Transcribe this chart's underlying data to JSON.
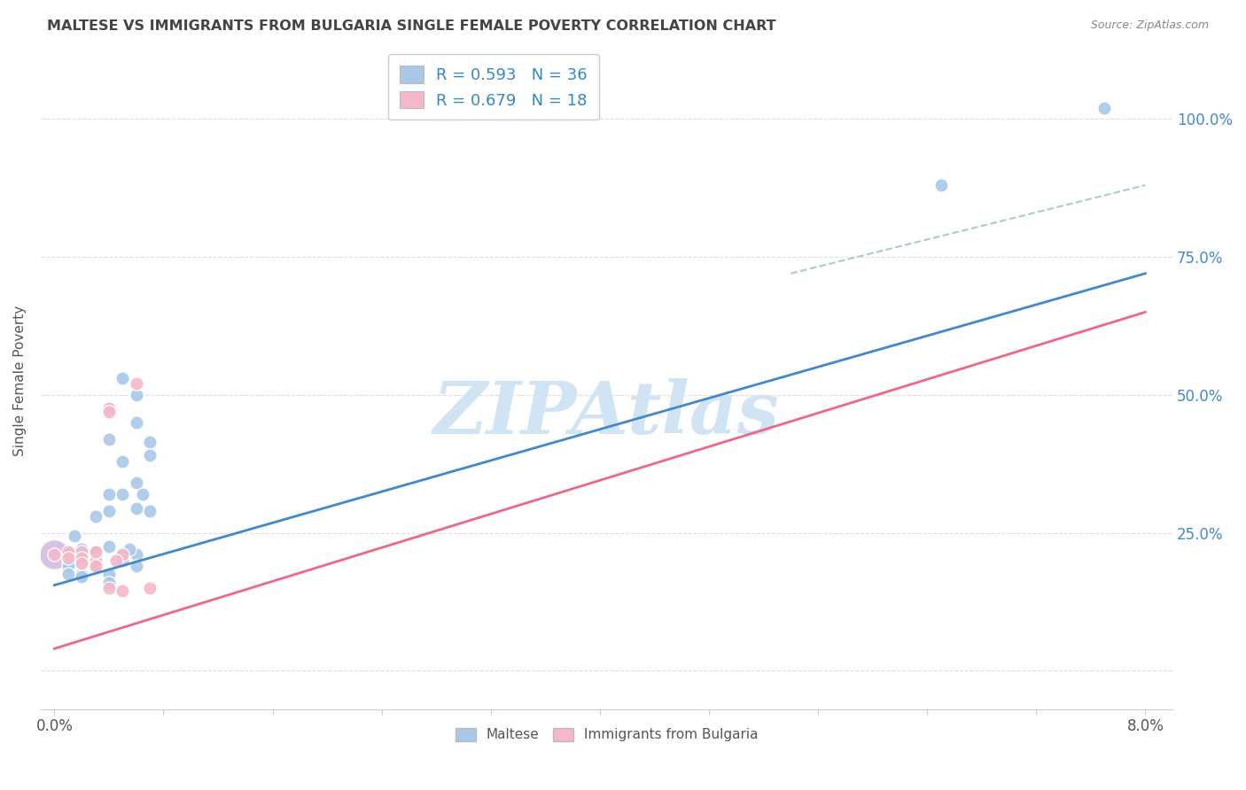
{
  "title": "MALTESE VS IMMIGRANTS FROM BULGARIA SINGLE FEMALE POVERTY CORRELATION CHART",
  "source": "Source: ZipAtlas.com",
  "ylabel": "Single Female Poverty",
  "legend_blue_R": 0.593,
  "legend_blue_N": 36,
  "legend_pink_R": 0.679,
  "legend_pink_N": 18,
  "legend_blue_label": "Maltese",
  "legend_pink_label": "Immigrants from Bulgaria",
  "watermark": "ZIPAtlas",
  "blue_scatter": [
    [
      0.001,
      0.2
    ],
    [
      0.001,
      0.19
    ],
    [
      0.001,
      0.21
    ],
    [
      0.001,
      0.175
    ],
    [
      0.002,
      0.22
    ],
    [
      0.002,
      0.2
    ],
    [
      0.002,
      0.175
    ],
    [
      0.002,
      0.17
    ],
    [
      0.0015,
      0.245
    ],
    [
      0.003,
      0.28
    ],
    [
      0.003,
      0.215
    ],
    [
      0.003,
      0.19
    ],
    [
      0.004,
      0.42
    ],
    [
      0.004,
      0.32
    ],
    [
      0.004,
      0.29
    ],
    [
      0.004,
      0.225
    ],
    [
      0.004,
      0.175
    ],
    [
      0.004,
      0.16
    ],
    [
      0.005,
      0.53
    ],
    [
      0.005,
      0.38
    ],
    [
      0.005,
      0.32
    ],
    [
      0.005,
      0.21
    ],
    [
      0.005,
      0.2
    ],
    [
      0.006,
      0.5
    ],
    [
      0.006,
      0.45
    ],
    [
      0.006,
      0.34
    ],
    [
      0.006,
      0.295
    ],
    [
      0.006,
      0.21
    ],
    [
      0.0055,
      0.22
    ],
    [
      0.006,
      0.19
    ],
    [
      0.007,
      0.415
    ],
    [
      0.007,
      0.39
    ],
    [
      0.0065,
      0.32
    ],
    [
      0.007,
      0.29
    ],
    [
      0.065,
      0.88
    ],
    [
      0.077,
      1.02
    ]
  ],
  "pink_scatter": [
    [
      0.0,
      0.21
    ],
    [
      0.001,
      0.215
    ],
    [
      0.001,
      0.205
    ],
    [
      0.002,
      0.215
    ],
    [
      0.002,
      0.205
    ],
    [
      0.002,
      0.195
    ],
    [
      0.003,
      0.215
    ],
    [
      0.003,
      0.2
    ],
    [
      0.003,
      0.19
    ],
    [
      0.003,
      0.215
    ],
    [
      0.004,
      0.475
    ],
    [
      0.004,
      0.47
    ],
    [
      0.005,
      0.21
    ],
    [
      0.0045,
      0.2
    ],
    [
      0.004,
      0.15
    ],
    [
      0.005,
      0.145
    ],
    [
      0.006,
      0.52
    ],
    [
      0.007,
      0.15
    ]
  ],
  "blue_line_x": [
    0.0,
    0.08
  ],
  "blue_line_y": [
    0.155,
    0.72
  ],
  "pink_line_x": [
    0.0,
    0.08
  ],
  "pink_line_y": [
    0.04,
    0.65
  ],
  "diagonal_line_x": [
    0.054,
    0.08
  ],
  "diagonal_line_y": [
    0.72,
    0.88
  ],
  "xlim": [
    -0.001,
    0.082
  ],
  "ylim": [
    -0.07,
    1.12
  ],
  "ytick_positions": [
    0.0,
    0.25,
    0.5,
    0.75,
    1.0
  ],
  "ytick_labels_right": [
    "",
    "25.0%",
    "50.0%",
    "75.0%",
    "100.0%"
  ],
  "xtick_positions": [
    0.0,
    0.008,
    0.016,
    0.024,
    0.032,
    0.04,
    0.048,
    0.056,
    0.064,
    0.072,
    0.08
  ],
  "background_color": "#ffffff",
  "grid_color": "#dddddd",
  "blue_color": "#a8c8e8",
  "pink_color": "#f4b8c8",
  "blue_line_color": "#4488cc",
  "pink_line_color": "#ee6688",
  "dash_line_color": "#aacccc",
  "title_color": "#444444",
  "source_color": "#888888",
  "watermark_color": "#d0e4f4",
  "ylabel_color": "#555555",
  "tick_color_right": "#4488cc",
  "scatter_size": 120
}
